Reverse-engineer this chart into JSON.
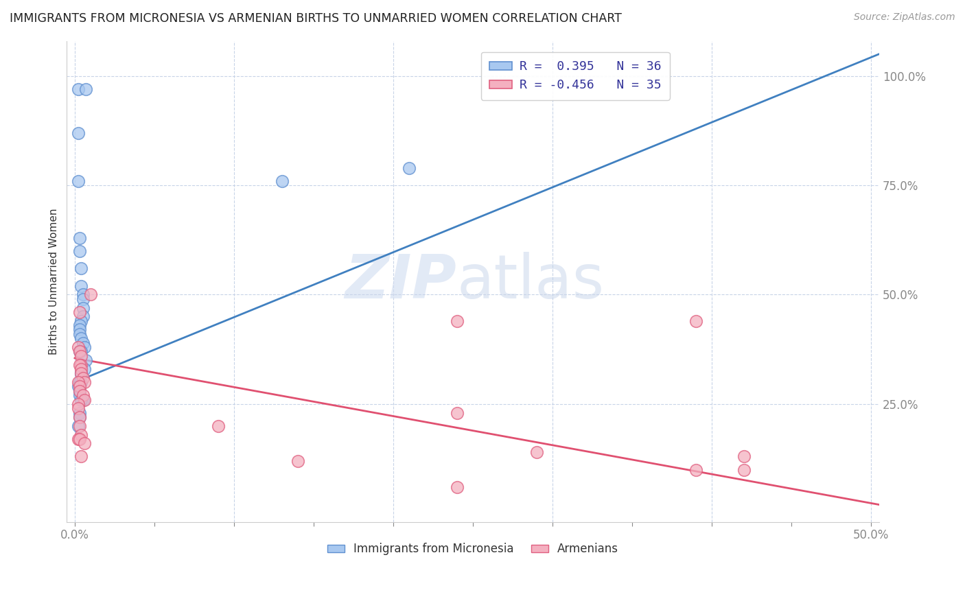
{
  "title": "IMMIGRANTS FROM MICRONESIA VS ARMENIAN BIRTHS TO UNMARRIED WOMEN CORRELATION CHART",
  "source": "Source: ZipAtlas.com",
  "ylabel": "Births to Unmarried Women",
  "xlim": [
    -0.005,
    0.505
  ],
  "ylim": [
    -0.02,
    1.08
  ],
  "legend1_text": "R =  0.395   N = 36",
  "legend2_text": "R = -0.456   N = 35",
  "blue_color": "#a8c8f0",
  "pink_color": "#f4b0c0",
  "blue_edge_color": "#6090d0",
  "pink_edge_color": "#e06080",
  "blue_line_color": "#4080c0",
  "pink_line_color": "#e05070",
  "watermark_zip": "ZIP",
  "watermark_atlas": "atlas",
  "blue_scatter_x": [
    0.002,
    0.007,
    0.002,
    0.002,
    0.003,
    0.003,
    0.004,
    0.004,
    0.005,
    0.005,
    0.005,
    0.005,
    0.004,
    0.003,
    0.003,
    0.003,
    0.004,
    0.005,
    0.006,
    0.003,
    0.004,
    0.007,
    0.006,
    0.004,
    0.004,
    0.003,
    0.002,
    0.003,
    0.003,
    0.005,
    0.004,
    0.21,
    0.003,
    0.003,
    0.13,
    0.002
  ],
  "blue_scatter_y": [
    0.97,
    0.97,
    0.87,
    0.76,
    0.63,
    0.6,
    0.56,
    0.52,
    0.5,
    0.49,
    0.47,
    0.45,
    0.44,
    0.43,
    0.42,
    0.41,
    0.4,
    0.39,
    0.38,
    0.37,
    0.37,
    0.35,
    0.33,
    0.32,
    0.3,
    0.3,
    0.29,
    0.28,
    0.27,
    0.26,
    0.26,
    0.79,
    0.23,
    0.22,
    0.76,
    0.2
  ],
  "pink_scatter_x": [
    0.002,
    0.003,
    0.004,
    0.004,
    0.003,
    0.004,
    0.004,
    0.005,
    0.006,
    0.002,
    0.003,
    0.003,
    0.005,
    0.006,
    0.002,
    0.002,
    0.003,
    0.003,
    0.01,
    0.004,
    0.002,
    0.003,
    0.006,
    0.003,
    0.24,
    0.39,
    0.24,
    0.42,
    0.004,
    0.14,
    0.29,
    0.42,
    0.09,
    0.39,
    0.24
  ],
  "pink_scatter_y": [
    0.38,
    0.37,
    0.36,
    0.34,
    0.34,
    0.33,
    0.32,
    0.31,
    0.3,
    0.3,
    0.29,
    0.28,
    0.27,
    0.26,
    0.25,
    0.24,
    0.22,
    0.2,
    0.5,
    0.18,
    0.17,
    0.17,
    0.16,
    0.46,
    0.44,
    0.44,
    0.23,
    0.13,
    0.13,
    0.12,
    0.14,
    0.1,
    0.2,
    0.1,
    0.06
  ],
  "blue_line_x0": 0.0,
  "blue_line_y0": 0.3,
  "blue_line_x1": 0.505,
  "blue_line_y1": 1.05,
  "pink_line_x0": 0.0,
  "pink_line_y0": 0.355,
  "pink_line_x1": 0.505,
  "pink_line_y1": 0.02
}
